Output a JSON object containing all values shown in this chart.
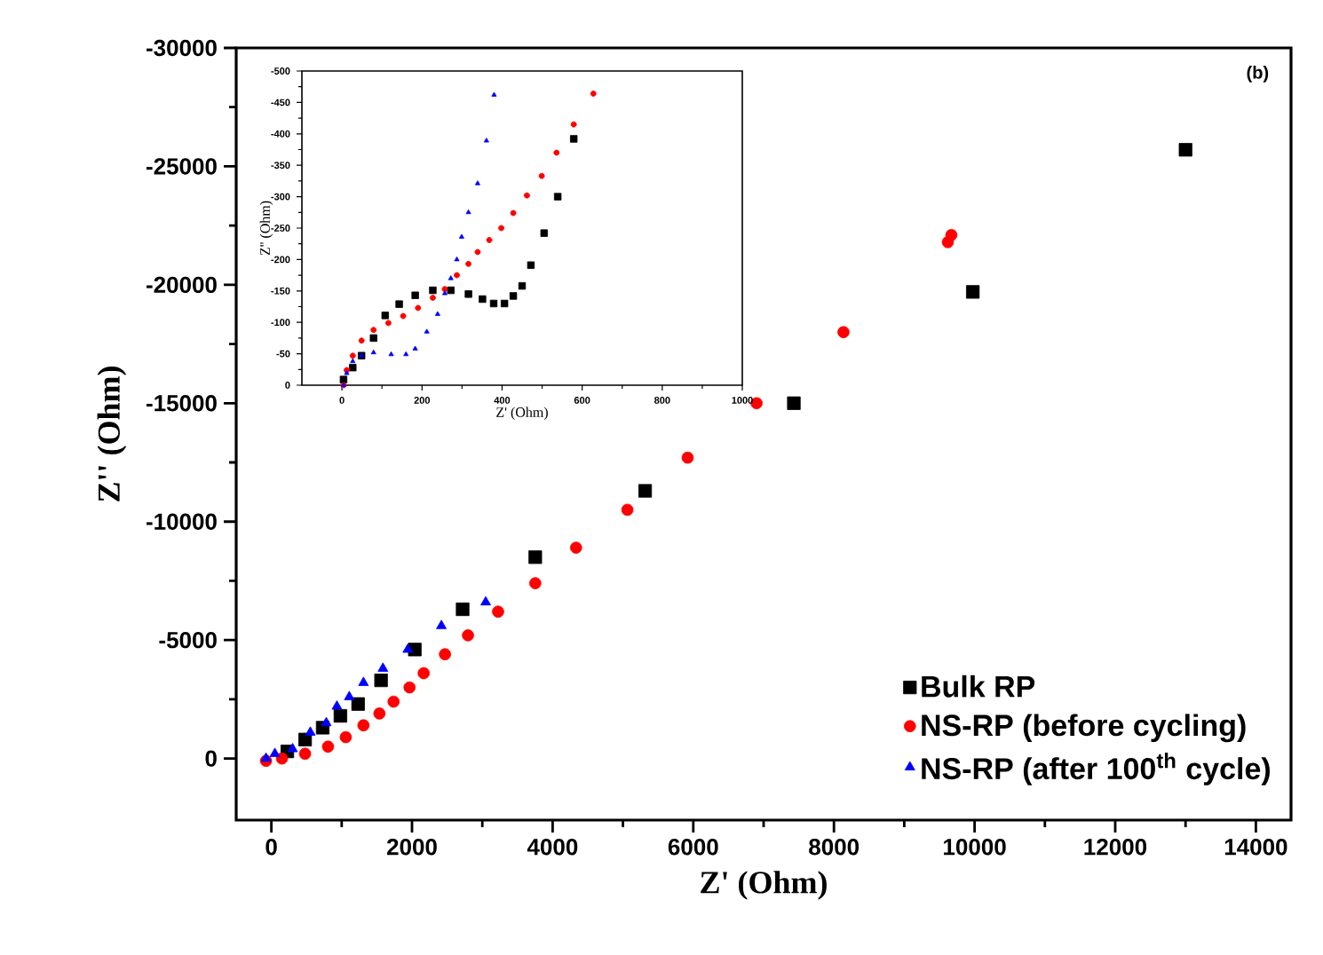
{
  "chart_data": [
    {
      "type": "scatter",
      "xlabel": "Z' (Ohm)",
      "ylabel": "Z'' (Ohm)",
      "annotations": [
        "(b)"
      ],
      "xlim": [
        -500,
        14500
      ],
      "ylim": [
        2600,
        -30000
      ],
      "xticks": [
        0,
        2000,
        4000,
        6000,
        8000,
        10000,
        12000,
        14000
      ],
      "yticks": [
        -30000,
        -25000,
        -20000,
        -15000,
        -10000,
        -5000,
        0
      ],
      "legend": "bottom right",
      "series": [
        {
          "name": "Bulk RP",
          "color": "#000000",
          "marker": "square",
          "x": [
            227,
            480,
            730,
            982,
            1234,
            1560,
            2040,
            2720,
            3753,
            5315,
            7430,
            9975,
            13000
          ],
          "values": [
            -300,
            -800,
            -1300,
            -1800,
            -2300,
            -3300,
            -4600,
            -6300,
            -8500,
            -11300,
            -15000,
            -19700,
            -25700
          ]
        },
        {
          "name": "NS-RP (before cycling)",
          "color": "#ff0000",
          "marker": "circle",
          "x": [
            -76,
            151,
            479,
            806,
            1058,
            1310,
            1537,
            1738,
            1965,
            2166,
            2469,
            2796,
            3224,
            3753,
            4333,
            5063,
            5920,
            6900,
            8136,
            9620,
            9670
          ],
          "values": [
            100,
            0,
            -200,
            -500,
            -900,
            -1400,
            -1900,
            -2400,
            -3000,
            -3600,
            -4400,
            -5200,
            -6200,
            -7400,
            -8900,
            -10500,
            -12700,
            -15000,
            -18000,
            -21800,
            -22100
          ]
        },
        {
          "name": "NS-RP (after 100$^{th}$ cycle)",
          "color": "#0000ff",
          "marker": "triangle",
          "x": [
            -76,
            50,
            302,
            554,
            781,
            932,
            1108,
            1310,
            1587,
            1940,
            2418,
            3048
          ],
          "values": [
            0,
            -200,
            -400,
            -1100,
            -1500,
            -2200,
            -2600,
            -3200,
            -3800,
            -4600,
            -5600,
            -6600
          ]
        }
      ]
    },
    {
      "type": "scatter",
      "xlabel": "Z' (Ohm)",
      "ylabel": "Z'' (Ohm)",
      "xlim": [
        -100,
        1000
      ],
      "ylim": [
        0,
        -500
      ],
      "xticks": [
        0,
        200,
        400,
        600,
        800,
        1000
      ],
      "yticks": [
        -500,
        -450,
        -400,
        -350,
        -300,
        -250,
        -200,
        -150,
        -100,
        -50,
        0
      ],
      "series": [
        {
          "color": "#000000",
          "marker": "square",
          "x": [
            4,
            27,
            49,
            79,
            108,
            143,
            183,
            227,
            272,
            316,
            351,
            379,
            406,
            428,
            450,
            472,
            505,
            539,
            579
          ],
          "values": [
            -9,
            -28,
            -47,
            -75,
            -111,
            -129,
            -143,
            -151,
            -151,
            -145,
            -137,
            -130,
            -130,
            -142,
            -158,
            -191,
            -242,
            -300,
            -392
          ]
        },
        {
          "color": "#ff0000",
          "marker": "circle",
          "x": [
            4,
            12,
            27,
            49,
            79,
            116,
            153,
            190,
            227,
            257,
            287,
            316,
            339,
            368,
            398,
            428,
            462,
            499,
            536,
            579,
            628
          ],
          "values": [
            0,
            -24,
            -47,
            -71,
            -88,
            -99,
            -110,
            -123,
            -139,
            -153,
            -175,
            -193,
            -212,
            -231,
            -250,
            -274,
            -302,
            -333,
            -370,
            -415,
            -464
          ]
        },
        {
          "color": "#0000ff",
          "marker": "triangle",
          "x": [
            4,
            12,
            27,
            49,
            79,
            123,
            160,
            183,
            212,
            239,
            257,
            272,
            287,
            299,
            316,
            339,
            361,
            380
          ],
          "values": [
            0,
            -19,
            -38,
            -47,
            -52,
            -49,
            -49,
            -58,
            -85,
            -113,
            -146,
            -170,
            -200,
            -236,
            -275,
            -321,
            -389,
            -462
          ]
        }
      ]
    }
  ]
}
